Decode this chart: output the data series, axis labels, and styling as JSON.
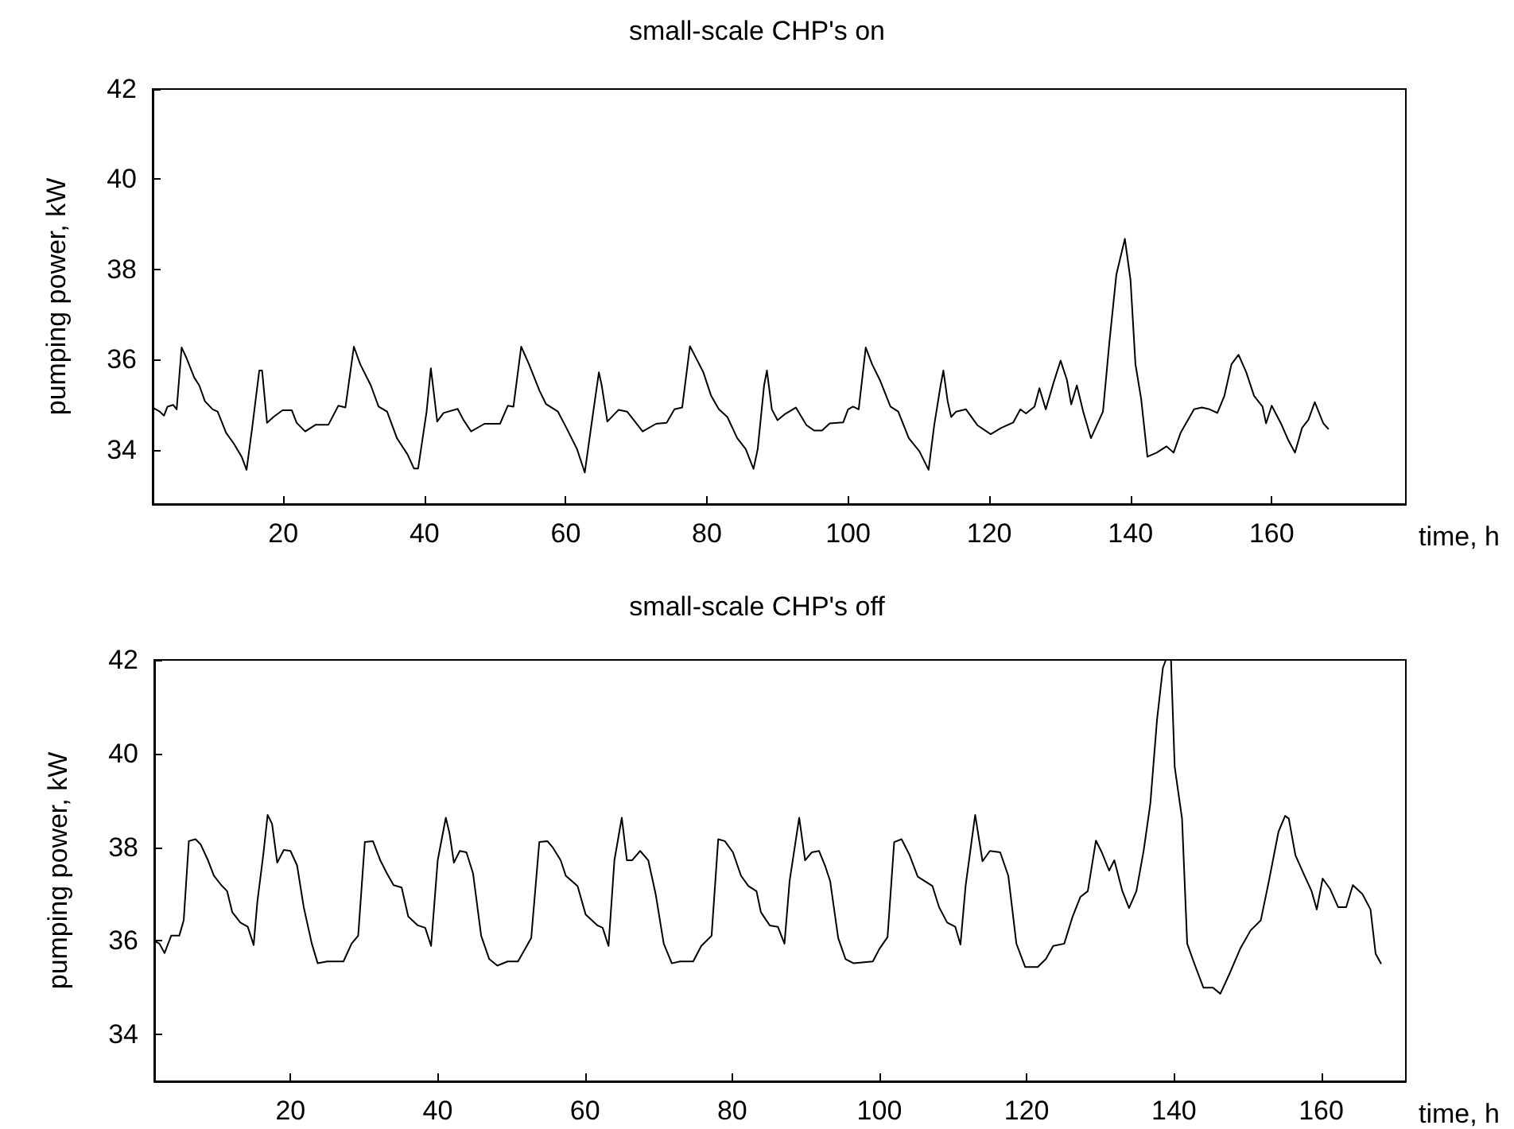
{
  "chart_data": [
    {
      "type": "line",
      "title": "small-scale CHP's on",
      "xlabel": "time, h",
      "ylabel": "pumping power, kW",
      "color": "#000000",
      "marker": "none",
      "line_style": "solid",
      "xlim": [
        1.5,
        179
      ],
      "xticks": [
        20,
        40,
        60,
        80,
        100,
        120,
        140,
        160
      ],
      "ylim": [
        32.8,
        42
      ],
      "yticks": [
        34,
        36,
        38,
        40,
        42
      ],
      "x": [
        1.6,
        2.5,
        3.1,
        3.6,
        4.4,
        4.9,
        5.6,
        6.2,
        7.4,
        8.1,
        8.9,
        10.0,
        10.7,
        11.9,
        13.0,
        14.1,
        14.8,
        15.6,
        16.6,
        17.0,
        17.7,
        18.6,
        19.9,
        21.2,
        21.9,
        23.1,
        24.6,
        26.4,
        27.8,
        28.8,
        30.0,
        30.9,
        32.4,
        33.5,
        34.7,
        36.1,
        37.6,
        38.5,
        39.1,
        40.3,
        40.9,
        41.2,
        41.8,
        42.7,
        44.7,
        45.5,
        46.6,
        48.5,
        50.7,
        51.8,
        52.6,
        53.7,
        54.8,
        56.3,
        57.2,
        58.9,
        60.1,
        61.6,
        62.7,
        63.8,
        64.7,
        65.1,
        65.9,
        67.5,
        68.7,
        70.9,
        72.8,
        74.3,
        75.4,
        76.5,
        77.6,
        79.5,
        80.6,
        81.7,
        82.9,
        84.3,
        85.5,
        86.6,
        87.2,
        88.1,
        88.5,
        89.2,
        90.0,
        91.1,
        92.6,
        94.1,
        95.2,
        96.3,
        97.4,
        99.3,
        100.0,
        100.7,
        101.5,
        102.5,
        103.4,
        104.5,
        106.0,
        107.1,
        108.6,
        110.1,
        111.4,
        112.2,
        113.1,
        113.5,
        114.1,
        114.6,
        115.3,
        116.7,
        118.3,
        120.2,
        121.7,
        123.4,
        124.4,
        125.2,
        126.4,
        127.1,
        128.0,
        129.1,
        130.1,
        131.0,
        131.6,
        132.4,
        133.3,
        134.4,
        136.1,
        137.0,
        138.0,
        139.2,
        140.0,
        140.7,
        141.5,
        142.4,
        143.7,
        145.1,
        146.1,
        147.1,
        149.0,
        150.1,
        151.2,
        152.3,
        153.3,
        154.3,
        155.3,
        156.4,
        157.5,
        158.7,
        159.2,
        160.0,
        161.3,
        162.4,
        163.3,
        164.3,
        165.2,
        166.1,
        167.3,
        168.0
      ],
      "values": [
        34.93,
        34.85,
        34.76,
        34.96,
        35.0,
        34.9,
        36.27,
        36.07,
        35.6,
        35.43,
        35.08,
        34.9,
        34.85,
        34.38,
        34.14,
        33.85,
        33.56,
        34.5,
        35.76,
        35.76,
        34.6,
        34.73,
        34.88,
        34.88,
        34.6,
        34.41,
        34.56,
        34.56,
        34.98,
        34.94,
        36.29,
        35.9,
        35.43,
        34.96,
        34.85,
        34.26,
        33.9,
        33.59,
        33.59,
        34.85,
        35.81,
        35.43,
        34.63,
        34.82,
        34.91,
        34.67,
        34.41,
        34.58,
        34.58,
        34.98,
        34.96,
        36.29,
        35.9,
        35.31,
        35.02,
        34.85,
        34.49,
        34.02,
        33.5,
        34.73,
        35.72,
        35.43,
        34.63,
        34.89,
        34.85,
        34.41,
        34.58,
        34.6,
        34.9,
        34.94,
        36.3,
        35.72,
        35.2,
        34.9,
        34.73,
        34.26,
        34.02,
        33.58,
        34.02,
        35.43,
        35.76,
        34.9,
        34.66,
        34.8,
        34.94,
        34.55,
        34.43,
        34.43,
        34.59,
        34.61,
        34.9,
        34.96,
        34.9,
        36.27,
        35.9,
        35.55,
        34.96,
        34.85,
        34.26,
        33.97,
        33.56,
        34.55,
        35.43,
        35.76,
        35.08,
        34.73,
        34.85,
        34.9,
        34.55,
        34.35,
        34.49,
        34.61,
        34.9,
        34.81,
        34.96,
        35.37,
        34.9,
        35.49,
        35.98,
        35.55,
        35.01,
        35.43,
        34.85,
        34.26,
        34.85,
        36.37,
        37.89,
        38.68,
        37.77,
        35.9,
        35.14,
        33.85,
        33.94,
        34.08,
        33.94,
        34.38,
        34.9,
        34.94,
        34.9,
        34.82,
        35.2,
        35.9,
        36.11,
        35.72,
        35.2,
        34.96,
        34.59,
        34.98,
        34.59,
        34.2,
        33.94,
        34.49,
        34.67,
        35.06,
        34.59,
        34.47
      ]
    },
    {
      "type": "line",
      "title": "small-scale CHP's off",
      "xlabel": "time, h",
      "ylabel": "pumping power, kW",
      "color": "#000000",
      "marker": "none",
      "line_style": "solid",
      "xlim": [
        1.5,
        171.5
      ],
      "xticks": [
        20,
        40,
        60,
        80,
        100,
        120,
        140,
        160
      ],
      "ylim": [
        33,
        42
      ],
      "yticks": [
        34,
        36,
        38,
        40,
        42
      ],
      "x": [
        1.5,
        2.2,
        2.9,
        3.8,
        4.9,
        5.5,
        6.2,
        7.1,
        7.8,
        8.8,
        9.6,
        10.6,
        11.4,
        12.1,
        13.2,
        14.2,
        15.0,
        15.5,
        16.3,
        16.9,
        17.5,
        18.2,
        19.1,
        20.0,
        20.9,
        21.8,
        22.9,
        23.7,
        25.0,
        27.2,
        28.3,
        29.2,
        30.1,
        31.2,
        32.2,
        33.1,
        34.0,
        35.1,
        36.0,
        37.3,
        38.3,
        39.1,
        40.0,
        41.1,
        41.6,
        42.2,
        43.0,
        43.9,
        44.8,
        45.9,
        47.0,
        48.1,
        49.5,
        50.9,
        51.7,
        52.7,
        53.8,
        54.9,
        55.6,
        56.7,
        57.4,
        59.0,
        60.1,
        61.7,
        62.4,
        63.2,
        64.0,
        65.0,
        65.7,
        66.4,
        67.5,
        68.6,
        69.6,
        70.7,
        71.8,
        72.9,
        74.7,
        75.8,
        77.2,
        78.1,
        79.0,
        80.1,
        81.2,
        82.2,
        83.3,
        83.9,
        85.1,
        86.2,
        87.1,
        87.8,
        89.1,
        89.9,
        90.8,
        91.8,
        92.6,
        93.3,
        94.4,
        95.4,
        96.5,
        99.1,
        100.0,
        101.1,
        102.0,
        103.0,
        104.1,
        105.2,
        107.2,
        108.1,
        109.2,
        110.3,
        111.0,
        111.7,
        113.0,
        114.0,
        115.0,
        116.4,
        117.5,
        118.6,
        119.8,
        121.5,
        122.6,
        123.6,
        125.1,
        126.2,
        127.3,
        128.3,
        129.4,
        130.2,
        131.2,
        131.9,
        133.0,
        133.9,
        134.9,
        135.9,
        136.8,
        137.7,
        138.5,
        138.9,
        139.6,
        140.1,
        141.1,
        141.8,
        142.8,
        144.0,
        145.3,
        146.3,
        147.5,
        149.0,
        150.4,
        151.8,
        152.9,
        154.2,
        155.1,
        155.6,
        156.5,
        157.6,
        158.7,
        159.4,
        160.2,
        161.2,
        162.3,
        163.4,
        164.3,
        165.6,
        166.7,
        167.4,
        168.1
      ],
      "values": [
        36.0,
        35.94,
        35.74,
        36.11,
        36.11,
        36.44,
        38.13,
        38.17,
        38.06,
        37.72,
        37.39,
        37.19,
        37.06,
        36.61,
        36.39,
        36.3,
        35.91,
        36.83,
        37.83,
        38.69,
        38.5,
        37.67,
        37.94,
        37.92,
        37.61,
        36.72,
        35.94,
        35.52,
        35.56,
        35.56,
        35.94,
        36.11,
        38.11,
        38.13,
        37.72,
        37.44,
        37.19,
        37.14,
        36.52,
        36.33,
        36.28,
        35.89,
        37.72,
        38.63,
        38.3,
        37.67,
        37.92,
        37.89,
        37.44,
        36.11,
        35.61,
        35.47,
        35.56,
        35.56,
        35.78,
        36.06,
        38.11,
        38.13,
        38.0,
        37.72,
        37.39,
        37.17,
        36.56,
        36.33,
        36.28,
        35.89,
        37.72,
        38.63,
        37.72,
        37.72,
        37.92,
        37.72,
        37.0,
        35.94,
        35.52,
        35.56,
        35.56,
        35.89,
        36.11,
        38.17,
        38.13,
        37.89,
        37.39,
        37.17,
        37.06,
        36.61,
        36.33,
        36.3,
        35.94,
        37.28,
        38.63,
        37.72,
        37.89,
        37.92,
        37.61,
        37.28,
        36.06,
        35.61,
        35.52,
        35.56,
        35.83,
        36.08,
        38.11,
        38.17,
        37.83,
        37.37,
        37.17,
        36.72,
        36.39,
        36.3,
        35.92,
        37.17,
        38.69,
        37.7,
        37.92,
        37.89,
        37.39,
        35.94,
        35.44,
        35.44,
        35.61,
        35.89,
        35.94,
        36.5,
        36.94,
        37.06,
        38.14,
        37.89,
        37.5,
        37.72,
        37.06,
        36.7,
        37.06,
        37.94,
        38.94,
        40.72,
        41.83,
        42,
        42,
        39.72,
        38.61,
        35.94,
        35.5,
        35.0,
        35.0,
        34.87,
        35.28,
        35.83,
        36.22,
        36.44,
        37.28,
        38.33,
        38.67,
        38.61,
        37.83,
        37.44,
        37.06,
        36.67,
        37.33,
        37.11,
        36.72,
        36.72,
        37.19,
        37.0,
        36.67,
        35.72,
        35.52
      ]
    }
  ]
}
